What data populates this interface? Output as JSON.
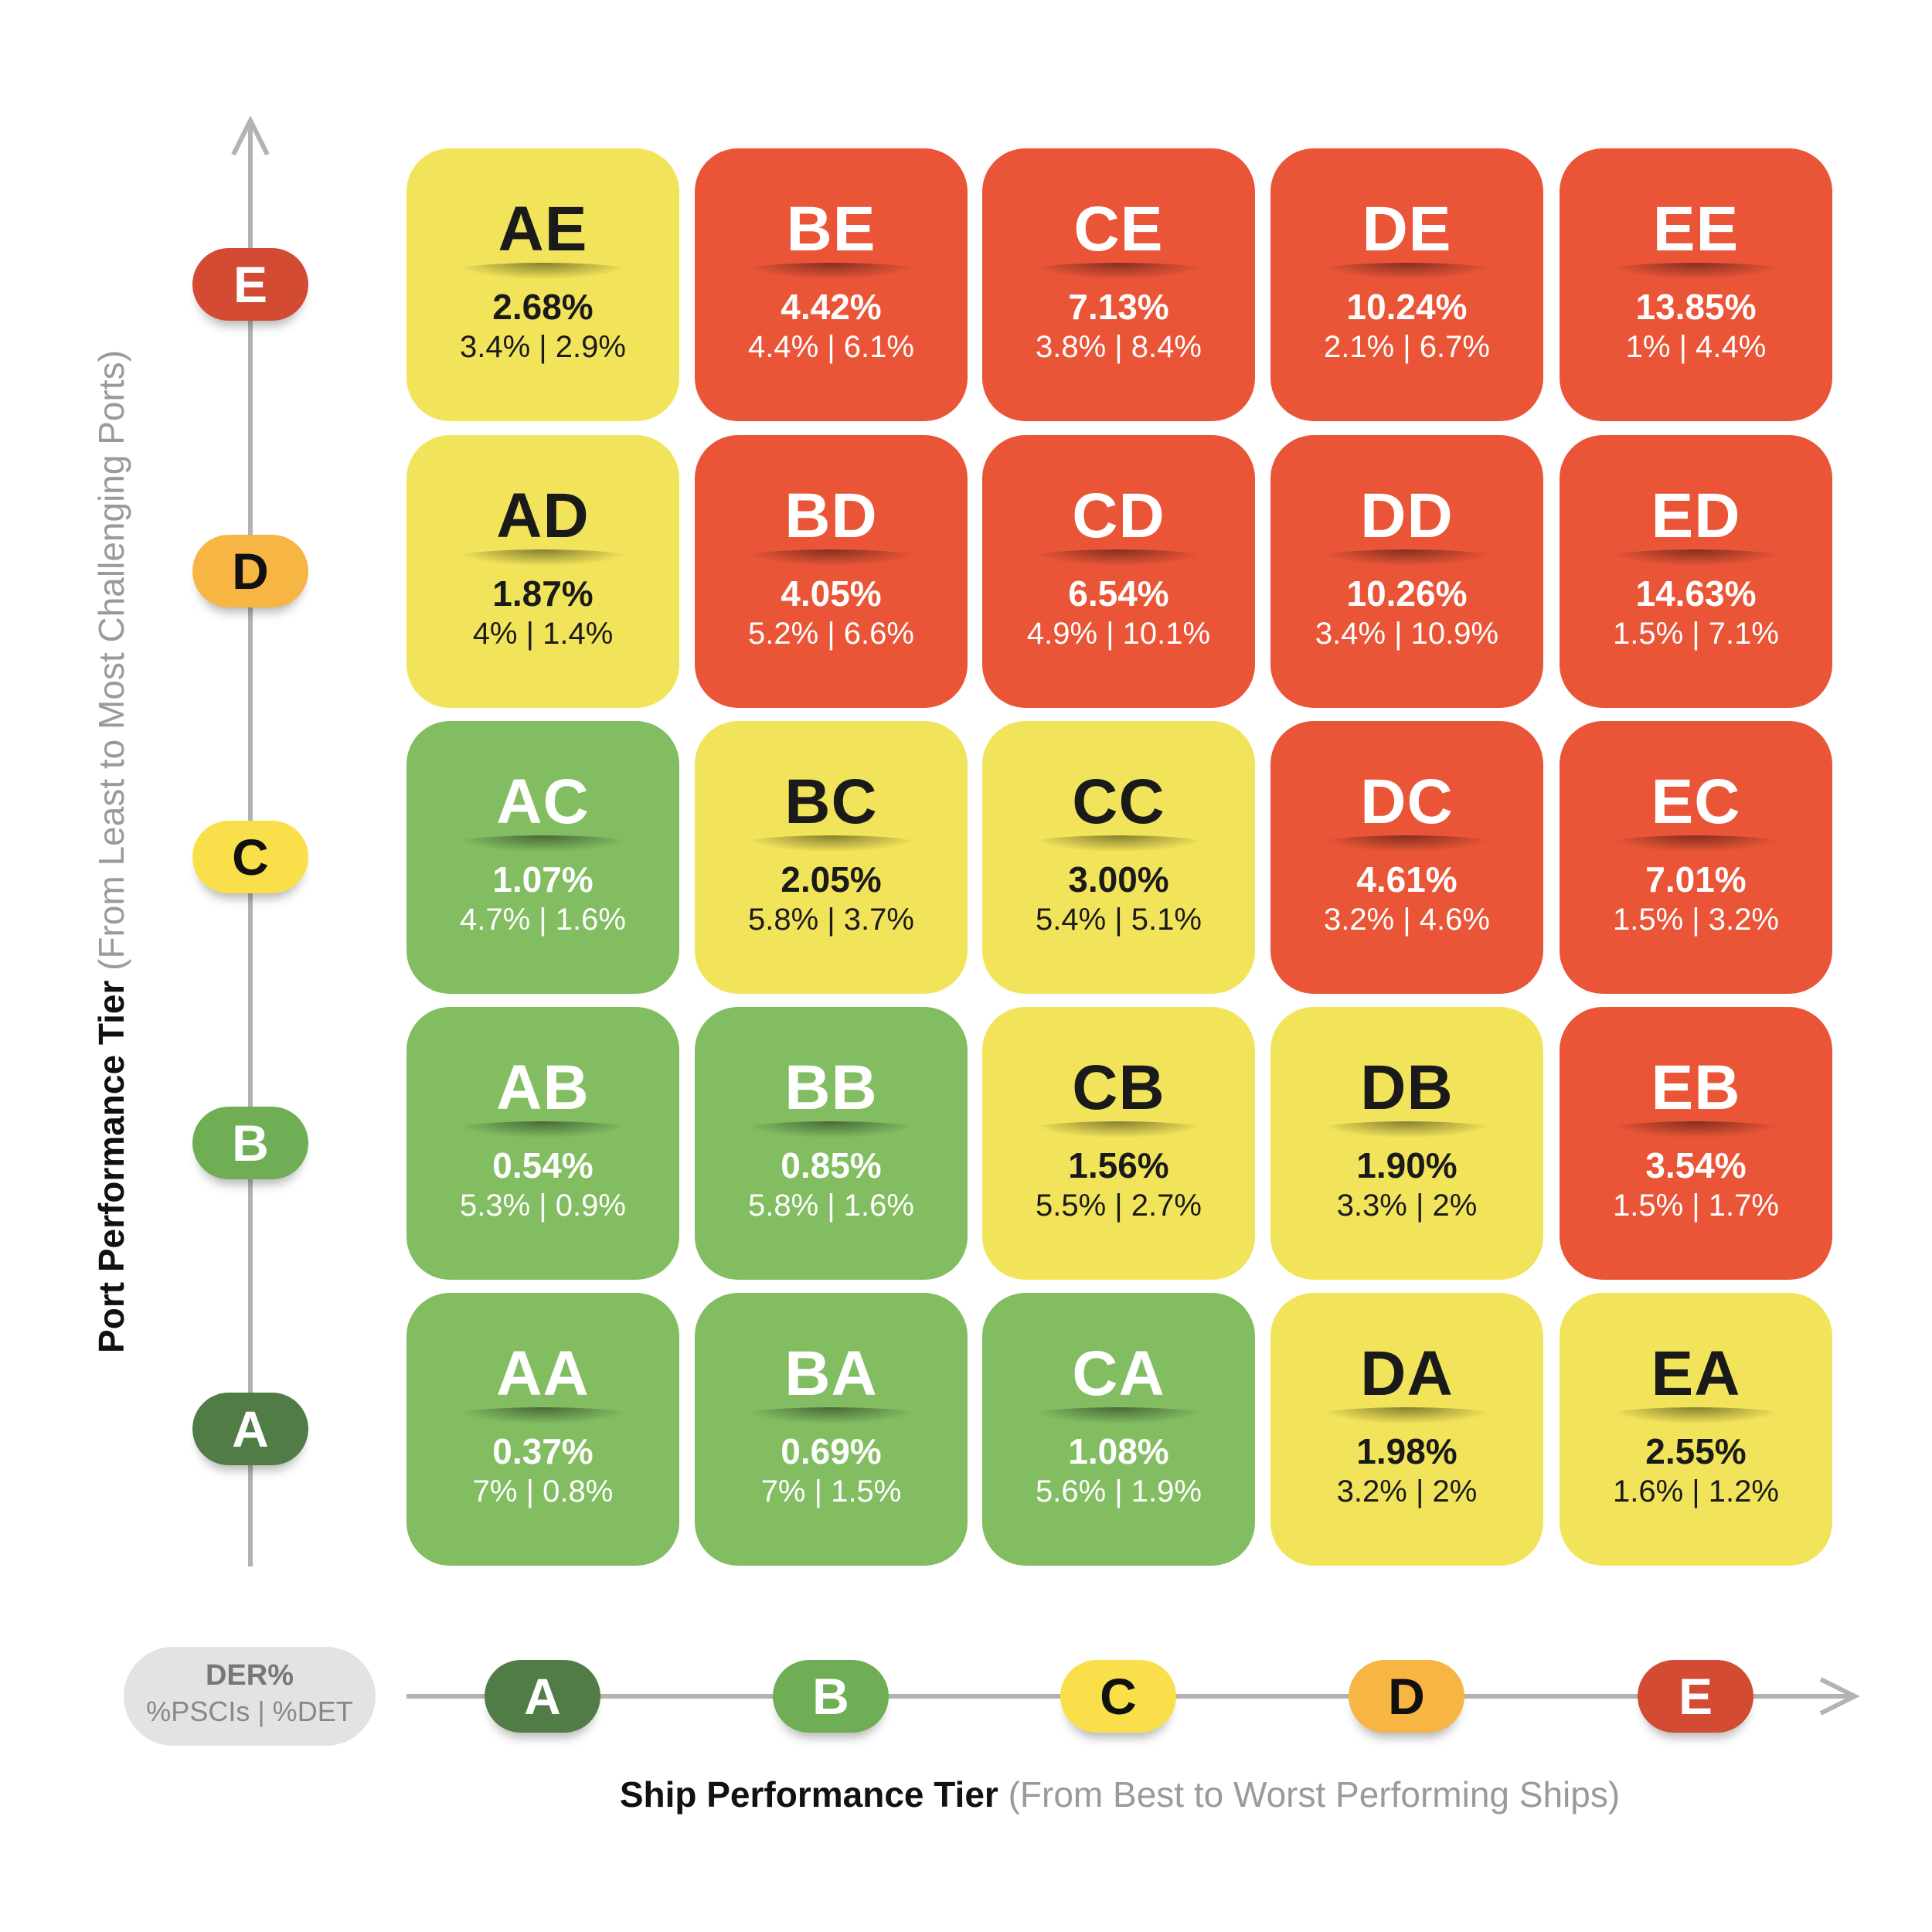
{
  "colors": {
    "green": "#82BD62",
    "yellow": "#F2E45A",
    "red": "#EA5538"
  },
  "y_axis": {
    "title": "Port Performance Tier",
    "subtitle": "(From Least to Most Challenging Ports)",
    "tiers": [
      {
        "label": "E",
        "color": "#D34B33",
        "text": "light"
      },
      {
        "label": "D",
        "color": "#F7B544",
        "text": "dark"
      },
      {
        "label": "C",
        "color": "#F9E04A",
        "text": "dark"
      },
      {
        "label": "B",
        "color": "#6FAE55",
        "text": "light"
      },
      {
        "label": "A",
        "color": "#517C45",
        "text": "light"
      }
    ]
  },
  "x_axis": {
    "title": "Ship Performance Tier",
    "subtitle": "(From Best to Worst Performing Ships)",
    "tiers": [
      {
        "label": "A",
        "color": "#517C45",
        "text": "light"
      },
      {
        "label": "B",
        "color": "#6FAE55",
        "text": "light"
      },
      {
        "label": "C",
        "color": "#F9E04A",
        "text": "dark"
      },
      {
        "label": "D",
        "color": "#F7B544",
        "text": "dark"
      },
      {
        "label": "E",
        "color": "#D34B33",
        "text": "light"
      }
    ]
  },
  "legend": {
    "line1": "DER%",
    "line2": "%PSCIs | %DET"
  },
  "rows": [
    [
      {
        "code": "AE",
        "der": "2.68%",
        "sub": "3.4% | 2.9%",
        "color": "yellow"
      },
      {
        "code": "BE",
        "der": "4.42%",
        "sub": "4.4% | 6.1%",
        "color": "red"
      },
      {
        "code": "CE",
        "der": "7.13%",
        "sub": "3.8% | 8.4%",
        "color": "red"
      },
      {
        "code": "DE",
        "der": "10.24%",
        "sub": "2.1% | 6.7%",
        "color": "red"
      },
      {
        "code": "EE",
        "der": "13.85%",
        "sub": "1% | 4.4%",
        "color": "red"
      }
    ],
    [
      {
        "code": "AD",
        "der": "1.87%",
        "sub": "4% | 1.4%",
        "color": "yellow"
      },
      {
        "code": "BD",
        "der": "4.05%",
        "sub": "5.2% | 6.6%",
        "color": "red"
      },
      {
        "code": "CD",
        "der": "6.54%",
        "sub": "4.9% | 10.1%",
        "color": "red"
      },
      {
        "code": "DD",
        "der": "10.26%",
        "sub": "3.4% | 10.9%",
        "color": "red"
      },
      {
        "code": "ED",
        "der": "14.63%",
        "sub": "1.5% | 7.1%",
        "color": "red"
      }
    ],
    [
      {
        "code": "AC",
        "der": "1.07%",
        "sub": "4.7% | 1.6%",
        "color": "green"
      },
      {
        "code": "BC",
        "der": "2.05%",
        "sub": "5.8% | 3.7%",
        "color": "yellow"
      },
      {
        "code": "CC",
        "der": "3.00%",
        "sub": "5.4% | 5.1%",
        "color": "yellow"
      },
      {
        "code": "DC",
        "der": "4.61%",
        "sub": "3.2% | 4.6%",
        "color": "red"
      },
      {
        "code": "EC",
        "der": "7.01%",
        "sub": "1.5% | 3.2%",
        "color": "red"
      }
    ],
    [
      {
        "code": "AB",
        "der": "0.54%",
        "sub": "5.3% | 0.9%",
        "color": "green"
      },
      {
        "code": "BB",
        "der": "0.85%",
        "sub": "5.8% | 1.6%",
        "color": "green"
      },
      {
        "code": "CB",
        "der": "1.56%",
        "sub": "5.5% | 2.7%",
        "color": "yellow"
      },
      {
        "code": "DB",
        "der": "1.90%",
        "sub": "3.3% | 2%",
        "color": "yellow"
      },
      {
        "code": "EB",
        "der": "3.54%",
        "sub": "1.5% | 1.7%",
        "color": "red"
      }
    ],
    [
      {
        "code": "AA",
        "der": "0.37%",
        "sub": "7% | 0.8%",
        "color": "green"
      },
      {
        "code": "BA",
        "der": "0.69%",
        "sub": "7% | 1.5%",
        "color": "green"
      },
      {
        "code": "CA",
        "der": "1.08%",
        "sub": "5.6% | 1.9%",
        "color": "green"
      },
      {
        "code": "DA",
        "der": "1.98%",
        "sub": "3.2% | 2%",
        "color": "yellow"
      },
      {
        "code": "EA",
        "der": "2.55%",
        "sub": "1.6% | 1.2%",
        "color": "yellow"
      }
    ]
  ]
}
